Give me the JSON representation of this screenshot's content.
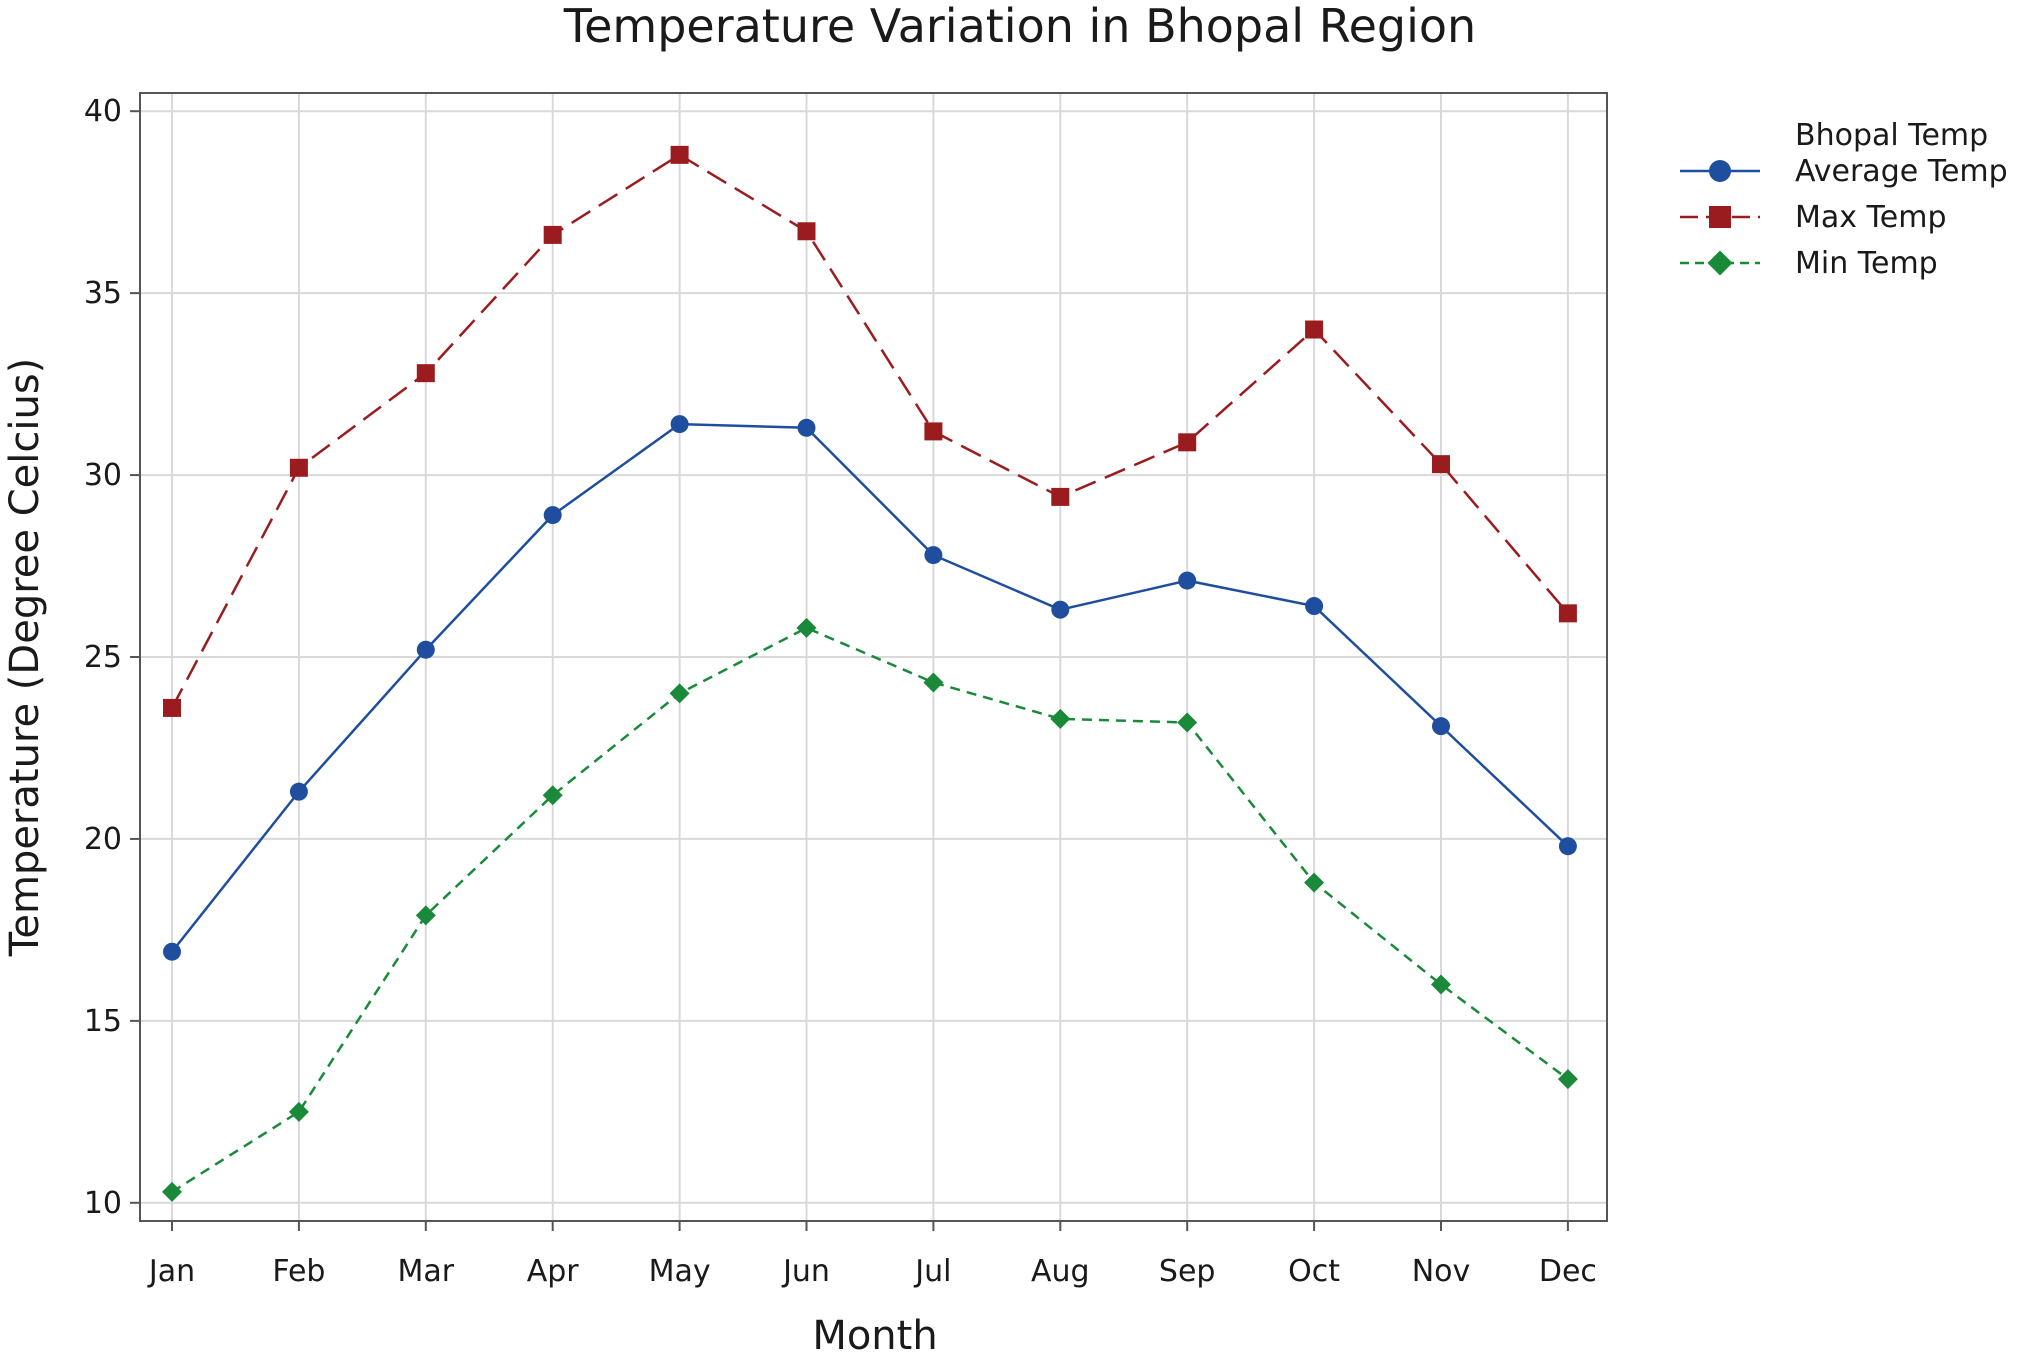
{
  "chart_data": {
    "type": "line",
    "title": "Temperature Variation in Bhopal Region",
    "xlabel": "Month",
    "ylabel": "Temperature (Degree Celcius)",
    "categories": [
      "Jan",
      "Feb",
      "Mar",
      "Apr",
      "May",
      "Jun",
      "Jul",
      "Aug",
      "Sep",
      "Oct",
      "Nov",
      "Dec"
    ],
    "ylim": [
      9.5,
      40.5
    ],
    "yticks": [
      10,
      15,
      20,
      25,
      30,
      35,
      40
    ],
    "grid": true,
    "legend": {
      "title": "Bhopal Temp",
      "position": "right"
    },
    "series": [
      {
        "name": "Average Temp",
        "color": "#1f4e9e",
        "marker": "circle",
        "line_style": "solid",
        "values": [
          16.9,
          21.3,
          25.2,
          28.9,
          31.4,
          31.3,
          27.8,
          26.3,
          27.1,
          26.4,
          23.1,
          19.8
        ]
      },
      {
        "name": "Max Temp",
        "color": "#9b1c1f",
        "marker": "square",
        "line_style": "long-dash",
        "values": [
          23.6,
          30.2,
          32.8,
          36.6,
          38.8,
          36.7,
          31.2,
          29.4,
          30.9,
          34.0,
          30.3,
          26.2
        ]
      },
      {
        "name": "Min Temp",
        "color": "#1a8a3a",
        "marker": "diamond",
        "line_style": "short-dash",
        "values": [
          10.3,
          12.5,
          17.9,
          21.2,
          24.0,
          25.8,
          24.3,
          23.3,
          23.2,
          18.8,
          16.0,
          13.4
        ]
      }
    ]
  }
}
